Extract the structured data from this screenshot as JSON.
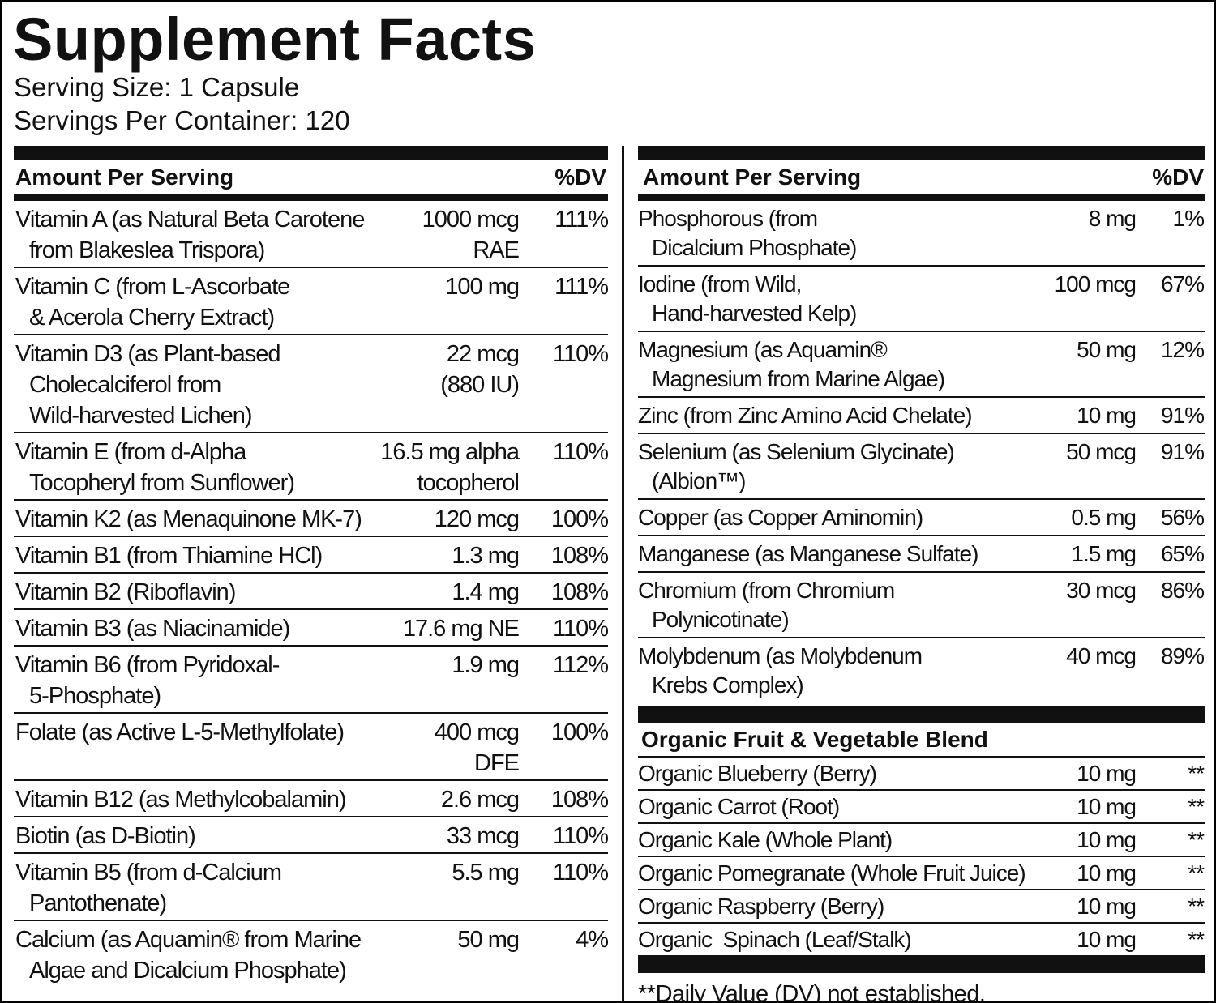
{
  "header": {
    "title": "Supplement Facts",
    "serving_size": "Serving Size: 1 Capsule",
    "servings_per_container": "Servings Per Container: 120"
  },
  "left_table": {
    "columns": [
      "Amount Per Serving",
      "%DV"
    ],
    "rows": [
      {
        "name": [
          "Vitamin A (as Natural Beta Carotene",
          "from Blakeslea Trispora)"
        ],
        "amount": [
          "1000 mcg",
          "RAE"
        ],
        "dv": "111%"
      },
      {
        "name": [
          "Vitamin C (from L-Ascorbate",
          "& Acerola Cherry Extract)"
        ],
        "amount": [
          "100 mg"
        ],
        "dv": "111%"
      },
      {
        "name": [
          "Vitamin D3 (as Plant-based",
          "Cholecalciferol from",
          "Wild-harvested Lichen)"
        ],
        "amount": [
          "22 mcg",
          "(880 IU)"
        ],
        "dv": "110%"
      },
      {
        "name": [
          "Vitamin E (from d-Alpha",
          "Tocopheryl from Sunflower)"
        ],
        "amount": [
          "16.5 mg alpha",
          "tocopherol"
        ],
        "dv": "110%"
      },
      {
        "name": [
          "Vitamin K2 (as Menaquinone MK-7)"
        ],
        "amount": [
          "120 mcg"
        ],
        "dv": "100%"
      },
      {
        "name": [
          "Vitamin B1 (from Thiamine HCl)"
        ],
        "amount": [
          "1.3 mg"
        ],
        "dv": "108%"
      },
      {
        "name": [
          "Vitamin B2 (Riboflavin)"
        ],
        "amount": [
          "1.4 mg"
        ],
        "dv": "108%"
      },
      {
        "name": [
          "Vitamin B3 (as Niacinamide)"
        ],
        "amount": [
          "17.6 mg NE"
        ],
        "dv": "110%"
      },
      {
        "name": [
          "Vitamin B6 (from Pyridoxal-",
          "5-Phosphate)"
        ],
        "amount": [
          "1.9 mg"
        ],
        "dv": "112%"
      },
      {
        "name": [
          "Folate (as Active L-5-Methylfolate)"
        ],
        "amount": [
          "400 mcg",
          "DFE"
        ],
        "dv": "100%"
      },
      {
        "name": [
          "Vitamin B12 (as Methylcobalamin)"
        ],
        "amount": [
          "2.6 mcg"
        ],
        "dv": "108%"
      },
      {
        "name": [
          "Biotin (as D-Biotin)"
        ],
        "amount": [
          "33 mcg"
        ],
        "dv": "110%"
      },
      {
        "name": [
          "Vitamin B5 (from d-Calcium",
          "Pantothenate)"
        ],
        "amount": [
          "5.5 mg"
        ],
        "dv": "110%"
      },
      {
        "name": [
          "Calcium (as Aquamin® from Marine",
          "Algae and Dicalcium Phosphate)"
        ],
        "amount": [
          "50 mg"
        ],
        "dv": "4%"
      }
    ]
  },
  "right_table": {
    "columns": [
      "Amount Per Serving",
      "%DV"
    ],
    "rows": [
      {
        "name": [
          "Phosphorous (from",
          "Dicalcium Phosphate)"
        ],
        "amount": [
          "8 mg"
        ],
        "dv": "1%"
      },
      {
        "name": [
          "Iodine (from Wild,",
          "Hand-harvested Kelp)"
        ],
        "amount": [
          "100 mcg"
        ],
        "dv": "67%"
      },
      {
        "name": [
          "Magnesium (as Aquamin®",
          "Magnesium from Marine Algae)"
        ],
        "amount": [
          "50 mg"
        ],
        "dv": "12%"
      },
      {
        "name": [
          "Zinc (from Zinc Amino Acid Chelate)"
        ],
        "amount": [
          "10 mg"
        ],
        "dv": "91%"
      },
      {
        "name": [
          "Selenium (as Selenium Glycinate)",
          "(Albion™)"
        ],
        "amount": [
          "50 mcg"
        ],
        "dv": "91%"
      },
      {
        "name": [
          "Copper (as Copper Aminomin)"
        ],
        "amount": [
          "0.5 mg"
        ],
        "dv": "56%"
      },
      {
        "name": [
          "Manganese (as Manganese Sulfate)"
        ],
        "amount": [
          "1.5 mg"
        ],
        "dv": "65%"
      },
      {
        "name": [
          "Chromium (from Chromium",
          "Polynicotinate)"
        ],
        "amount": [
          "30 mcg"
        ],
        "dv": "86%"
      },
      {
        "name": [
          "Molybdenum (as Molybdenum",
          "Krebs Complex)"
        ],
        "amount": [
          "40 mcg"
        ],
        "dv": "89%"
      }
    ]
  },
  "blend": {
    "title": "Organic Fruit & Vegetable Blend",
    "rows": [
      {
        "name": "Organic Blueberry (Berry)",
        "amount": "10 mg",
        "dv": "**"
      },
      {
        "name": "Organic Carrot (Root)",
        "amount": "10 mg",
        "dv": "**"
      },
      {
        "name": "Organic Kale (Whole Plant)",
        "amount": "10 mg",
        "dv": "**"
      },
      {
        "name": "Organic Pomegranate (Whole Fruit Juice)",
        "amount": "10 mg",
        "dv": "**"
      },
      {
        "name": "Organic Raspberry (Berry)",
        "amount": "10 mg",
        "dv": "**"
      },
      {
        "name": "Organic  Spinach (Leaf/Stalk)",
        "amount": "10 mg",
        "dv": "**"
      }
    ]
  },
  "footnote": "**Daily Value (DV) not established."
}
